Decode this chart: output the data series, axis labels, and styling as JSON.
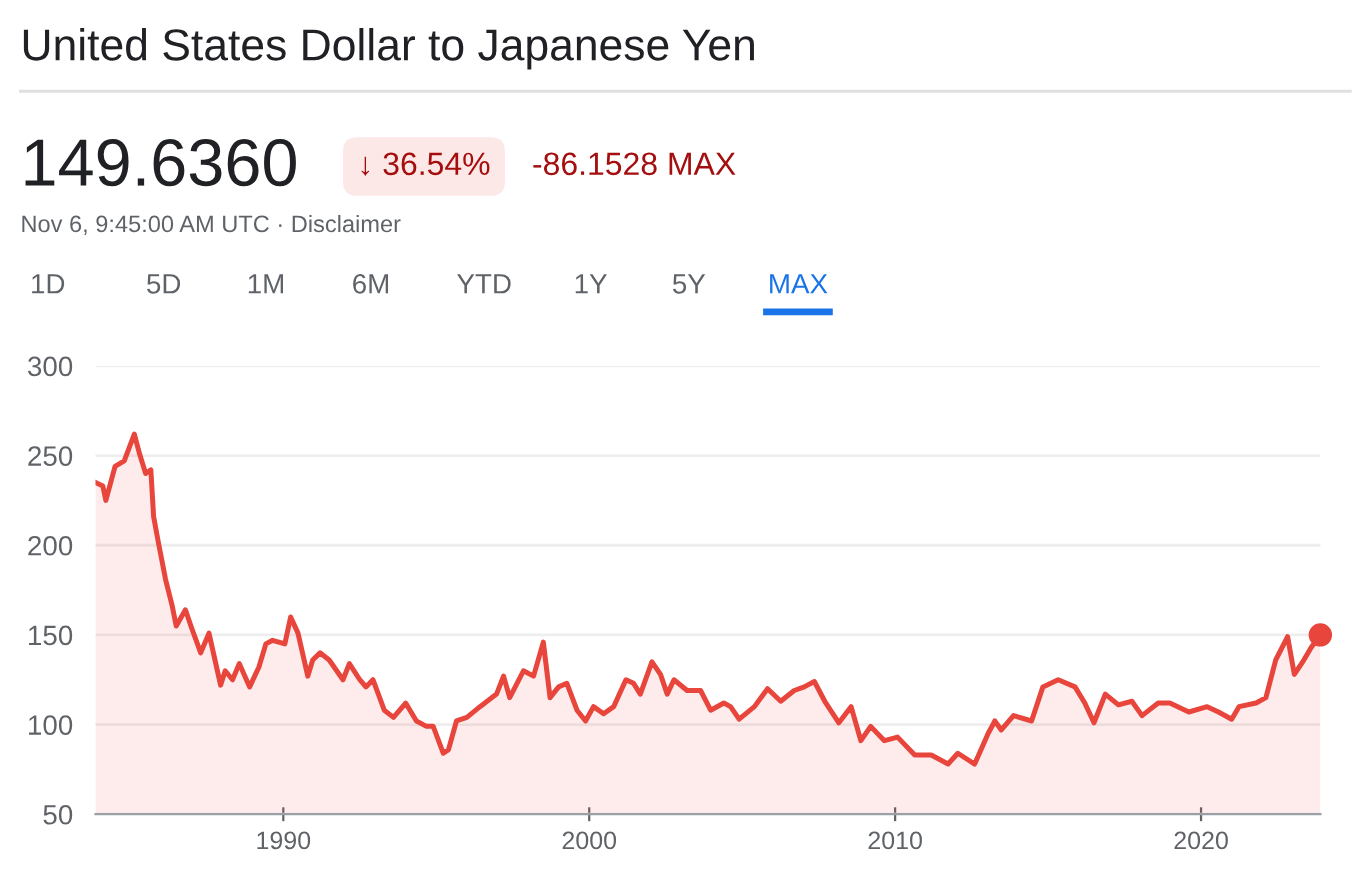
{
  "chart_data": {
    "type": "area",
    "title": "United States Dollar to Japanese Yen",
    "annotations": [
      "149.6360",
      "↓ 36.54%",
      "-86.1528 MAX",
      "Nov 6, 9:45:00 AM UTC · Disclaimer",
      "1D",
      "5D",
      "1M",
      "6M",
      "YTD",
      "1Y",
      "5Y",
      "MAX"
    ],
    "series": [
      {
        "color": "#e8453c",
        "x": [
          1983.86,
          1984.1,
          1984.2,
          1984.5,
          1984.8,
          1985.13,
          1985.3,
          1985.5,
          1985.67,
          1985.76,
          1985.9,
          1986.15,
          1986.37,
          1986.5,
          1986.8,
          1987.0,
          1987.3,
          1987.57,
          1987.95,
          1988.1,
          1988.34,
          1988.56,
          1988.9,
          1989.2,
          1989.43,
          1989.65,
          1990.05,
          1990.24,
          1990.48,
          1990.8,
          1990.96,
          1991.2,
          1991.5,
          1991.95,
          1992.16,
          1992.5,
          1992.7,
          1992.93,
          1993.3,
          1993.6,
          1994.0,
          1994.35,
          1994.68,
          1994.9,
          1995.23,
          1995.4,
          1995.66,
          1996.0,
          1996.43,
          1996.97,
          1997.2,
          1997.4,
          1997.85,
          1998.18,
          1998.5,
          1998.72,
          1999.0,
          1999.27,
          1999.6,
          1999.88,
          2000.14,
          2000.47,
          2000.8,
          2001.2,
          2001.45,
          2001.67,
          2002.05,
          2002.33,
          2002.55,
          2002.77,
          2003.2,
          2003.64,
          2003.97,
          2004.4,
          2004.62,
          2004.9,
          2005.4,
          2005.83,
          2006.26,
          2006.7,
          2007.03,
          2007.36,
          2007.7,
          2008.16,
          2008.56,
          2008.88,
          2009.2,
          2009.65,
          2010.08,
          2010.64,
          2011.18,
          2011.73,
          2012.05,
          2012.6,
          2013.04,
          2013.26,
          2013.47,
          2013.87,
          2014.46,
          2014.83,
          2015.33,
          2015.88,
          2016.2,
          2016.5,
          2016.87,
          2017.3,
          2017.74,
          2018.07,
          2018.6,
          2018.98,
          2019.6,
          2020.2,
          2020.57,
          2021.0,
          2021.24,
          2021.8,
          2022.12,
          2022.44,
          2022.83,
          2023.05,
          2023.36,
          2023.6,
          2023.9
        ],
        "values": [
          235,
          233,
          225,
          244,
          247,
          262,
          251,
          240,
          242,
          216,
          203,
          181,
          166,
          155,
          164,
          154,
          140,
          151,
          122,
          130,
          125,
          134,
          121,
          132,
          145,
          147,
          145,
          160,
          151,
          127,
          136,
          140,
          136,
          125,
          134,
          125,
          121,
          125,
          108,
          104,
          112,
          102,
          99,
          99,
          84,
          86,
          102,
          104,
          110,
          117,
          127,
          115,
          130,
          127,
          146,
          115,
          121,
          123,
          108,
          102,
          110,
          106,
          110,
          125,
          123,
          117,
          135,
          128,
          117,
          125,
          119,
          119,
          108,
          112,
          110,
          103,
          110,
          120,
          113,
          119,
          121,
          124,
          113,
          101,
          110,
          91,
          99,
          91,
          93,
          83,
          83,
          78,
          84,
          78,
          95,
          102,
          97,
          105,
          102,
          121,
          125,
          121,
          112,
          101,
          117,
          111,
          113,
          105,
          112,
          112,
          107,
          110,
          107,
          103,
          110,
          112,
          115,
          136,
          149,
          128,
          136,
          143,
          150
        ]
      },
      {
        "type": "scatter",
        "marker": "circle",
        "color": "#e8453c",
        "x": [
          2023.9
        ],
        "values": [
          150
        ]
      }
    ],
    "xlim": [
      1983.86,
      2023.9
    ],
    "xticks": [
      1990,
      2000,
      2010,
      2020
    ],
    "ylim": [
      50,
      300
    ],
    "yticks": [
      50,
      100,
      150,
      200,
      250,
      300
    ],
    "grid": "y",
    "marker": "none",
    "line_style": "solid"
  }
}
